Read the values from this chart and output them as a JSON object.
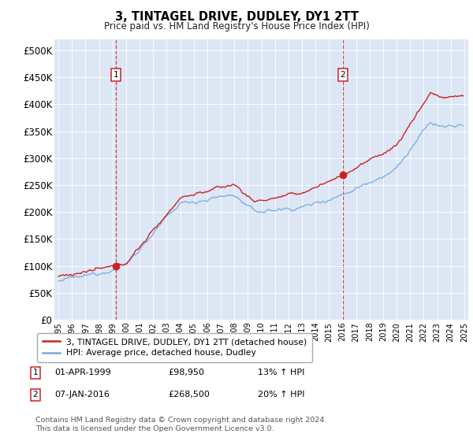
{
  "title": "3, TINTAGEL DRIVE, DUDLEY, DY1 2TT",
  "subtitle": "Price paid vs. HM Land Registry's House Price Index (HPI)",
  "plot_bg_color": "#dce6f5",
  "red_line_label": "3, TINTAGEL DRIVE, DUDLEY, DY1 2TT (detached house)",
  "blue_line_label": "HPI: Average price, detached house, Dudley",
  "annotation1_date": "01-APR-1999",
  "annotation1_price": "£98,950",
  "annotation1_hpi": "13% ↑ HPI",
  "annotation2_date": "07-JAN-2016",
  "annotation2_price": "£268,500",
  "annotation2_hpi": "20% ↑ HPI",
  "footer": "Contains HM Land Registry data © Crown copyright and database right 2024.\nThis data is licensed under the Open Government Licence v3.0.",
  "ylim": [
    0,
    520000
  ],
  "yticks": [
    0,
    50000,
    100000,
    150000,
    200000,
    250000,
    300000,
    350000,
    400000,
    450000,
    500000
  ],
  "xlim_left": 1994.7,
  "xlim_right": 2025.3,
  "vline1_x": 1999.25,
  "vline2_x": 2016.02,
  "sale1_x": 1999.25,
  "sale1_y": 98950,
  "sale2_x": 2016.02,
  "sale2_y": 268500,
  "red_color": "#cc2222",
  "blue_color": "#7aaadd",
  "grid_color": "white",
  "vline_color": "#cc3333"
}
